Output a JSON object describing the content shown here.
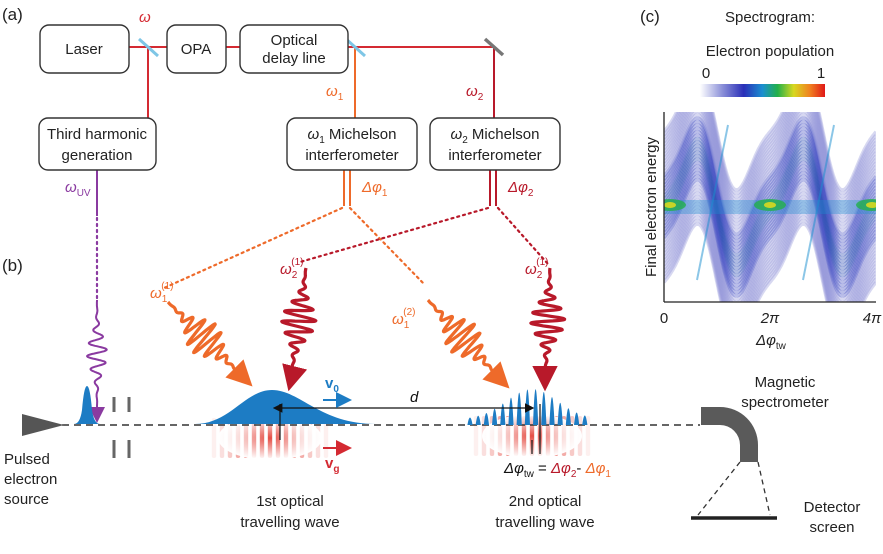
{
  "panels": {
    "a": "(a)",
    "b": "(b)",
    "c": "(c)"
  },
  "boxes": {
    "laser": "Laser",
    "opa": "OPA",
    "delay_line": [
      "Optical",
      "delay line"
    ],
    "thg": [
      "Third harmonic",
      "generation"
    ],
    "mich1": {
      "sym": "ω",
      "sub": "1",
      "line1": " Michelson",
      "line2": "interferometer"
    },
    "mich2": {
      "sym": "ω",
      "sub": "2",
      "line1": " Michelson",
      "line2": "interferometer"
    }
  },
  "beam_labels": {
    "omega": "ω",
    "omega1": {
      "sym": "ω",
      "sub": "1"
    },
    "omega2": {
      "sym": "ω",
      "sub": "2"
    },
    "omega_uv": {
      "sym": "ω",
      "sub": "UV"
    },
    "dphi1": {
      "sym": "Δφ",
      "sub": "1"
    },
    "dphi2": {
      "sym": "Δφ",
      "sub": "2"
    }
  },
  "pulse_labels": {
    "w1_1": {
      "sym": "ω",
      "sub": "1",
      "sup": "(1)"
    },
    "w2_1a": {
      "sym": "ω",
      "sub": "2",
      "sup": "(1)"
    },
    "w1_2": {
      "sym": "ω",
      "sub": "1",
      "sup": "(2)"
    },
    "w2_1b": {
      "sym": "ω",
      "sub": "2",
      "sup": "(1)"
    }
  },
  "velocity": {
    "v0": {
      "sym": "v",
      "sub": "0"
    },
    "vg": {
      "sym": "v",
      "sub": "g"
    }
  },
  "distance": "d",
  "phase_eq": {
    "lhs": "Δφ",
    "lhs_sub": "tw",
    "eq": " = ",
    "t1": "Δφ",
    "t1_sub": "2",
    "minus": "- ",
    "t2": "Δφ",
    "t2_sub": "1"
  },
  "captions": {
    "source": [
      "Pulsed",
      "electron",
      "source"
    ],
    "wave1": [
      "1st optical",
      "travelling wave"
    ],
    "wave2": [
      "2nd optical",
      "travelling wave"
    ],
    "spectrometer": [
      "Magnetic",
      "spectrometer"
    ],
    "detector": [
      "Detector",
      "screen"
    ]
  },
  "spectrogram": {
    "title": "Spectrogram:",
    "colorbar_label": "Electron population",
    "colorbar_min": "0",
    "colorbar_max": "1",
    "ylabel": "Final electron energy",
    "xticks": [
      "0",
      "2π",
      "4π"
    ],
    "xlabel": {
      "sym": "Δφ",
      "sub": "tw"
    }
  },
  "colors": {
    "laser_red": "#d42a32",
    "omega1_orange": "#ee6a2a",
    "omega2_red": "#b8192a",
    "uv_purple": "#8a3aa0",
    "electron_blue": "#1d7cc4",
    "mirror_blue": "#7ec6e6"
  }
}
